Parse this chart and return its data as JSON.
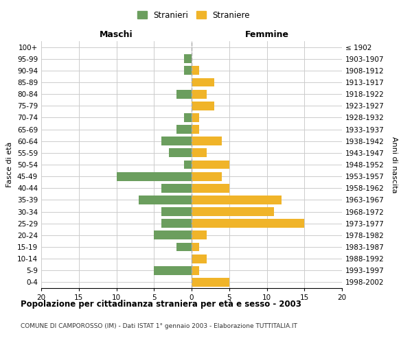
{
  "age_groups": [
    "0-4",
    "5-9",
    "10-14",
    "15-19",
    "20-24",
    "25-29",
    "30-34",
    "35-39",
    "40-44",
    "45-49",
    "50-54",
    "55-59",
    "60-64",
    "65-69",
    "70-74",
    "75-79",
    "80-84",
    "85-89",
    "90-94",
    "95-99",
    "100+"
  ],
  "birth_years": [
    "1998-2002",
    "1993-1997",
    "1988-1992",
    "1983-1987",
    "1978-1982",
    "1973-1977",
    "1968-1972",
    "1963-1967",
    "1958-1962",
    "1953-1957",
    "1948-1952",
    "1943-1947",
    "1938-1942",
    "1933-1937",
    "1928-1932",
    "1923-1927",
    "1918-1922",
    "1913-1917",
    "1908-1912",
    "1903-1907",
    "≤ 1902"
  ],
  "maschi": [
    0,
    5,
    0,
    2,
    5,
    4,
    4,
    7,
    4,
    10,
    1,
    3,
    4,
    2,
    1,
    0,
    2,
    0,
    1,
    1,
    0
  ],
  "femmine": [
    5,
    1,
    2,
    1,
    2,
    15,
    11,
    12,
    5,
    4,
    5,
    2,
    4,
    1,
    1,
    3,
    2,
    3,
    1,
    0,
    0
  ],
  "color_maschi": "#6b9e5e",
  "color_femmine": "#f0b429",
  "background_color": "#ffffff",
  "grid_color": "#cccccc",
  "xlim": 20,
  "title": "Popolazione per cittadinanza straniera per età e sesso - 2003",
  "subtitle": "COMUNE DI CAMPOROSSO (IM) - Dati ISTAT 1° gennaio 2003 - Elaborazione TUTTITALIA.IT",
  "ylabel_left": "Fasce di età",
  "ylabel_right": "Anni di nascita",
  "label_maschi": "Stranieri",
  "label_femmine": "Straniere",
  "header_maschi": "Maschi",
  "header_femmine": "Femmine"
}
